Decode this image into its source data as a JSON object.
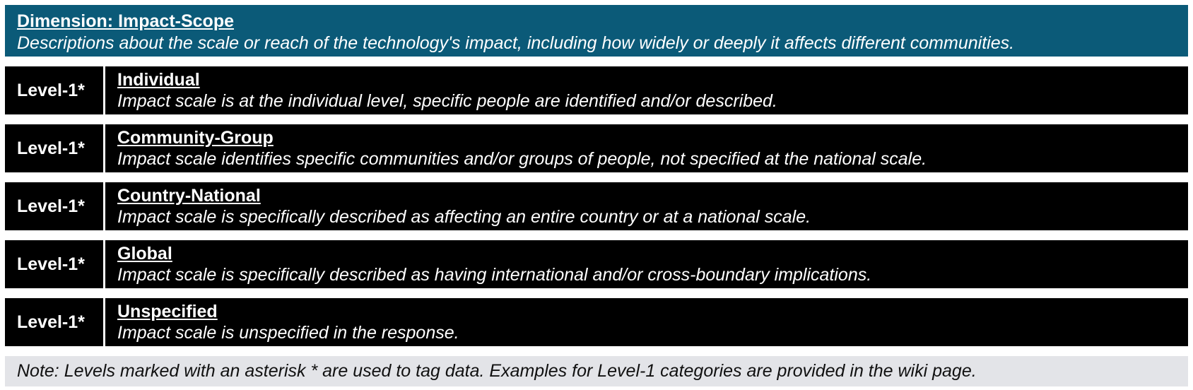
{
  "header": {
    "title": "Dimension: Impact-Scope",
    "description": "Descriptions about the scale or reach of the technology's impact, including how widely or deeply it affects different communities."
  },
  "rows": [
    {
      "level": "Level-1*",
      "name": "Individual",
      "description": "Impact scale is at the individual level, specific people are identified and/or described."
    },
    {
      "level": "Level-1*",
      "name": "Community-Group",
      "description": "Impact scale identifies specific communities and/or groups of people, not specified at the national scale."
    },
    {
      "level": "Level-1*",
      "name": "Country-National",
      "description": "Impact scale is specifically described as affecting an entire country or at a national scale."
    },
    {
      "level": "Level-1*",
      "name": "Global",
      "description": "Impact scale is specifically described as having international and/or cross-boundary implications."
    },
    {
      "level": "Level-1*",
      "name": "Unspecified",
      "description": "Impact scale is unspecified in the response."
    }
  ],
  "note": "Note: Levels marked with an asterisk * are used to tag data. Examples for Level-1 categories are provided in the wiki page.",
  "colors": {
    "header_bg": "#0b5a78",
    "row_bg": "#000000",
    "note_bg": "#e3e4e8"
  }
}
